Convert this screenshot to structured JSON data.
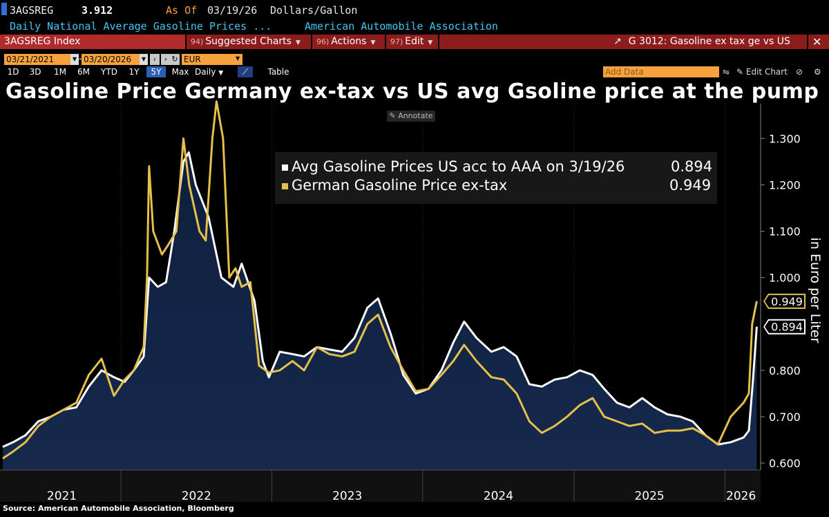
{
  "header": {
    "ticker": "3AGSREG",
    "price": "3.912",
    "as_of_label": "As Of",
    "as_of_date": "03/19/26",
    "units": "Dollars/Gallon",
    "description": "Daily National Average Gasoline Prices ...",
    "source_name": "American Automobile Association"
  },
  "toolbar": {
    "index_label": "3AGSREG Index",
    "suggested_num": "94)",
    "suggested_label": "Suggested Charts",
    "actions_num": "96)",
    "actions_label": "Actions",
    "edit_num": "97)",
    "edit_label": "Edit",
    "related_label": "G 3012: Gasoline ex tax ge vs US"
  },
  "controls": {
    "start_date": "03/21/2021",
    "end_date": "03/20/2026",
    "currency": "EUR",
    "ranges": [
      "1D",
      "3D",
      "1M",
      "6M",
      "YTD",
      "1Y",
      "5Y",
      "Max"
    ],
    "active_range": "5Y",
    "frequency": "Daily",
    "table_label": "Table",
    "add_data_placeholder": "Add Data",
    "edit_chart_label": "Edit Chart",
    "annotate_label": "Annotate"
  },
  "colors": {
    "us_line": "#ffffff",
    "de_line": "#e6c14a",
    "area_fill": "#0f1f3d",
    "accent": "#f7a23c",
    "toolbar_red": "#8d1d1d"
  },
  "chart_data": {
    "type": "line",
    "title": "Gasoline Price Germany ex-tax vs US avg Gsoline price at the pump",
    "ylabel": "in Euro per Liter",
    "ylim": [
      0.585,
      1.39
    ],
    "yticks": [
      "1.300",
      "1.200",
      "1.100",
      "1.000",
      "0.800",
      "0.700",
      "0.600"
    ],
    "xlim": [
      "2021-03-21",
      "2026-03-20"
    ],
    "x_labels": [
      "2021",
      "2022",
      "2023",
      "2024",
      "2025",
      "2026"
    ],
    "series": [
      {
        "name": "Avg Gasoline Prices US acc to AAA on 3/19/26",
        "last_value": "0.894",
        "color": "#ffffff",
        "filled": true,
        "points": [
          [
            "2021-03-21",
            0.635
          ],
          [
            "2021-04-15",
            0.645
          ],
          [
            "2021-05-15",
            0.66
          ],
          [
            "2021-06-15",
            0.69
          ],
          [
            "2021-07-15",
            0.7
          ],
          [
            "2021-08-15",
            0.715
          ],
          [
            "2021-09-15",
            0.72
          ],
          [
            "2021-10-15",
            0.765
          ],
          [
            "2021-11-15",
            0.8
          ],
          [
            "2021-12-15",
            0.785
          ],
          [
            "2022-01-10",
            0.775
          ],
          [
            "2022-02-01",
            0.8
          ],
          [
            "2022-02-25",
            0.83
          ],
          [
            "2022-03-10",
            1.0
          ],
          [
            "2022-03-31",
            0.98
          ],
          [
            "2022-04-20",
            0.99
          ],
          [
            "2022-05-10",
            1.1
          ],
          [
            "2022-06-01",
            1.25
          ],
          [
            "2022-06-14",
            1.27
          ],
          [
            "2022-07-01",
            1.2
          ],
          [
            "2022-08-01",
            1.13
          ],
          [
            "2022-09-01",
            1.0
          ],
          [
            "2022-09-30",
            0.98
          ],
          [
            "2022-10-20",
            1.03
          ],
          [
            "2022-11-20",
            0.95
          ],
          [
            "2022-12-10",
            0.82
          ],
          [
            "2022-12-25",
            0.785
          ],
          [
            "2023-01-20",
            0.84
          ],
          [
            "2023-02-20",
            0.835
          ],
          [
            "2023-03-20",
            0.83
          ],
          [
            "2023-04-20",
            0.85
          ],
          [
            "2023-05-20",
            0.845
          ],
          [
            "2023-06-20",
            0.84
          ],
          [
            "2023-07-20",
            0.87
          ],
          [
            "2023-08-20",
            0.935
          ],
          [
            "2023-09-15",
            0.955
          ],
          [
            "2023-10-15",
            0.88
          ],
          [
            "2023-11-15",
            0.79
          ],
          [
            "2023-12-15",
            0.75
          ],
          [
            "2024-01-15",
            0.76
          ],
          [
            "2024-02-15",
            0.8
          ],
          [
            "2024-03-15",
            0.86
          ],
          [
            "2024-04-10",
            0.905
          ],
          [
            "2024-05-10",
            0.87
          ],
          [
            "2024-06-15",
            0.84
          ],
          [
            "2024-07-15",
            0.85
          ],
          [
            "2024-08-15",
            0.83
          ],
          [
            "2024-09-15",
            0.77
          ],
          [
            "2024-10-15",
            0.765
          ],
          [
            "2024-11-15",
            0.78
          ],
          [
            "2024-12-15",
            0.785
          ],
          [
            "2025-01-15",
            0.8
          ],
          [
            "2025-02-15",
            0.79
          ],
          [
            "2025-03-15",
            0.76
          ],
          [
            "2025-04-15",
            0.73
          ],
          [
            "2025-05-15",
            0.72
          ],
          [
            "2025-06-15",
            0.74
          ],
          [
            "2025-07-15",
            0.72
          ],
          [
            "2025-08-15",
            0.705
          ],
          [
            "2025-09-15",
            0.7
          ],
          [
            "2025-10-15",
            0.69
          ],
          [
            "2025-11-15",
            0.66
          ],
          [
            "2025-12-15",
            0.64
          ],
          [
            "2026-01-15",
            0.645
          ],
          [
            "2026-02-15",
            0.655
          ],
          [
            "2026-02-28",
            0.67
          ],
          [
            "2026-03-10",
            0.78
          ],
          [
            "2026-03-19",
            0.894
          ]
        ]
      },
      {
        "name": "German Gasoline Price ex-tax",
        "last_value": "0.949",
        "color": "#e6c14a",
        "filled": false,
        "points": [
          [
            "2021-03-21",
            0.61
          ],
          [
            "2021-04-15",
            0.625
          ],
          [
            "2021-05-15",
            0.645
          ],
          [
            "2021-06-15",
            0.68
          ],
          [
            "2021-07-15",
            0.7
          ],
          [
            "2021-08-15",
            0.715
          ],
          [
            "2021-09-15",
            0.73
          ],
          [
            "2021-10-15",
            0.79
          ],
          [
            "2021-11-15",
            0.825
          ],
          [
            "2021-12-15",
            0.745
          ],
          [
            "2022-01-10",
            0.78
          ],
          [
            "2022-02-01",
            0.8
          ],
          [
            "2022-02-25",
            0.85
          ],
          [
            "2022-03-05",
            1.0
          ],
          [
            "2022-03-10",
            1.24
          ],
          [
            "2022-03-20",
            1.1
          ],
          [
            "2022-04-10",
            1.05
          ],
          [
            "2022-04-25",
            1.07
          ],
          [
            "2022-05-15",
            1.1
          ],
          [
            "2022-06-01",
            1.3
          ],
          [
            "2022-06-15",
            1.2
          ],
          [
            "2022-07-10",
            1.1
          ],
          [
            "2022-07-25",
            1.08
          ],
          [
            "2022-08-10",
            1.3
          ],
          [
            "2022-08-20",
            1.38
          ],
          [
            "2022-09-05",
            1.3
          ],
          [
            "2022-09-20",
            1.0
          ],
          [
            "2022-10-05",
            1.02
          ],
          [
            "2022-10-20",
            0.98
          ],
          [
            "2022-11-10",
            0.99
          ],
          [
            "2022-12-01",
            0.81
          ],
          [
            "2022-12-25",
            0.795
          ],
          [
            "2023-01-20",
            0.8
          ],
          [
            "2023-02-20",
            0.82
          ],
          [
            "2023-03-20",
            0.8
          ],
          [
            "2023-04-20",
            0.85
          ],
          [
            "2023-05-20",
            0.835
          ],
          [
            "2023-06-20",
            0.83
          ],
          [
            "2023-07-20",
            0.84
          ],
          [
            "2023-08-20",
            0.9
          ],
          [
            "2023-09-15",
            0.92
          ],
          [
            "2023-10-15",
            0.85
          ],
          [
            "2023-11-15",
            0.8
          ],
          [
            "2023-12-15",
            0.755
          ],
          [
            "2024-01-15",
            0.76
          ],
          [
            "2024-02-15",
            0.79
          ],
          [
            "2024-03-15",
            0.82
          ],
          [
            "2024-04-10",
            0.855
          ],
          [
            "2024-05-10",
            0.82
          ],
          [
            "2024-06-15",
            0.785
          ],
          [
            "2024-07-15",
            0.78
          ],
          [
            "2024-08-15",
            0.75
          ],
          [
            "2024-09-15",
            0.69
          ],
          [
            "2024-10-15",
            0.665
          ],
          [
            "2024-11-15",
            0.68
          ],
          [
            "2024-12-15",
            0.7
          ],
          [
            "2025-01-15",
            0.725
          ],
          [
            "2025-02-15",
            0.74
          ],
          [
            "2025-03-15",
            0.7
          ],
          [
            "2025-04-15",
            0.69
          ],
          [
            "2025-05-15",
            0.68
          ],
          [
            "2025-06-15",
            0.685
          ],
          [
            "2025-07-15",
            0.665
          ],
          [
            "2025-08-15",
            0.67
          ],
          [
            "2025-09-15",
            0.67
          ],
          [
            "2025-10-15",
            0.675
          ],
          [
            "2025-11-15",
            0.66
          ],
          [
            "2025-12-15",
            0.64
          ],
          [
            "2026-01-15",
            0.7
          ],
          [
            "2026-02-15",
            0.73
          ],
          [
            "2026-02-28",
            0.75
          ],
          [
            "2026-03-08",
            0.9
          ],
          [
            "2026-03-19",
            0.949
          ]
        ]
      }
    ]
  },
  "footer": {
    "source": "Source: American Automobile Association, Bloomberg"
  }
}
